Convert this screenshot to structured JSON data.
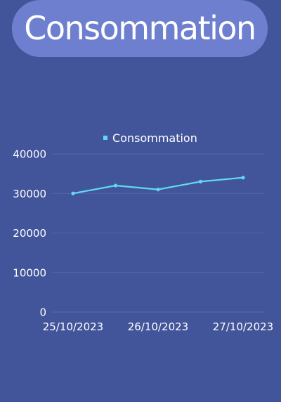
{
  "header": {
    "title": "Consommation"
  },
  "colors": {
    "background": "#42559a",
    "title_pill": "#6f7fd0",
    "series_line": "#62d8f0",
    "gridline": "#5566aa",
    "text": "#ffffff"
  },
  "chart_data": {
    "type": "line",
    "series": [
      {
        "name": "Consommation",
        "values": [
          30000,
          32000,
          31000,
          33000,
          34000
        ]
      }
    ],
    "x": [
      "",
      "",
      "",
      "",
      ""
    ],
    "x_tick_labels": [
      "25/10/2023",
      "26/10/2023",
      "27/10/2023"
    ],
    "y_ticks": [
      "0",
      "10000",
      "20000",
      "30000",
      "40000"
    ],
    "ylim": [
      0,
      40000
    ],
    "grid": true,
    "legend_position": "top-center"
  }
}
